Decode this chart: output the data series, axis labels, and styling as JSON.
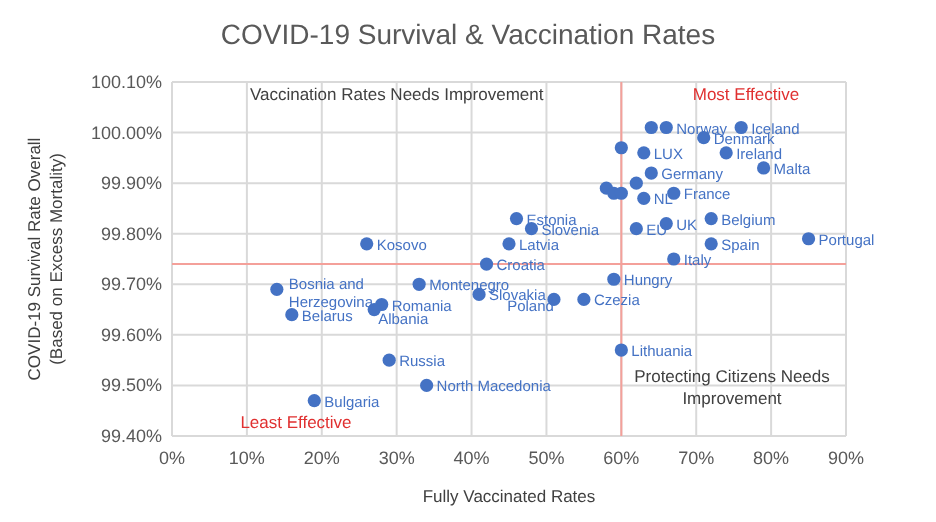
{
  "chart_data": {
    "type": "scatter",
    "title": "COVID-19 Survival & Vaccination Rates",
    "xlabel": "Fully Vaccinated Rates",
    "ylabel": "COVID-19 Survival Rate Overall\n(Based on Excess Mortality)",
    "xlim": [
      0,
      90
    ],
    "xticks": [
      {
        "value": 0,
        "label": "0%"
      },
      {
        "value": 10,
        "label": "10%"
      },
      {
        "value": 20,
        "label": "20%"
      },
      {
        "value": 30,
        "label": "30%"
      },
      {
        "value": 40,
        "label": "40%"
      },
      {
        "value": 50,
        "label": "50%"
      },
      {
        "value": 60,
        "label": "60%"
      },
      {
        "value": 70,
        "label": "70%"
      },
      {
        "value": 80,
        "label": "80%"
      },
      {
        "value": 90,
        "label": "90%"
      }
    ],
    "ylim": [
      99.4,
      100.1
    ],
    "yticks": [
      {
        "value": 99.4,
        "label": "99.40%"
      },
      {
        "value": 99.5,
        "label": "99.50%"
      },
      {
        "value": 99.6,
        "label": "99.60%"
      },
      {
        "value": 99.7,
        "label": "99.70%"
      },
      {
        "value": 99.8,
        "label": "99.80%"
      },
      {
        "value": 99.9,
        "label": "99.90%"
      },
      {
        "value": 100,
        "label": "100.00%"
      },
      {
        "value": 100.1,
        "label": "100.10%"
      }
    ],
    "grid": true,
    "marker": "circle",
    "series": [
      {
        "color": "#4472c4",
        "x": [
          26,
          46,
          48,
          45,
          42,
          64,
          66,
          76,
          71,
          60,
          63,
          74,
          79,
          64,
          62,
          58,
          59,
          60,
          63,
          67,
          72,
          62,
          66,
          72,
          85,
          67,
          14,
          16,
          28,
          27,
          33,
          41,
          51,
          55,
          29,
          34,
          19,
          59,
          60
        ],
        "values": [
          99.78,
          99.83,
          99.81,
          99.78,
          99.74,
          100.01,
          100.01,
          100.01,
          99.99,
          99.97,
          99.96,
          99.96,
          99.93,
          99.92,
          99.9,
          99.89,
          99.88,
          99.88,
          99.87,
          99.88,
          99.83,
          99.81,
          99.82,
          99.78,
          99.79,
          99.75,
          99.69,
          99.64,
          99.66,
          99.65,
          99.7,
          99.68,
          99.67,
          99.67,
          99.55,
          99.5,
          99.47,
          99.71,
          99.57
        ]
      }
    ],
    "ref_lines": [
      {
        "axis": "x",
        "value": 60,
        "color": "#f4a09a"
      },
      {
        "axis": "y",
        "value": 99.74,
        "color": "#f4a09a"
      }
    ],
    "annotations": [
      "Vaccination Rates Needs Improvement",
      "Most Effective",
      "Least Effective",
      "Protecting Citizens Needs\nImprovement",
      {
        "text": "Kosovo",
        "x": 26,
        "y": 99.78
      },
      {
        "text": "Estonia",
        "x": 46,
        "y": 99.83
      },
      {
        "text": "Slovenia",
        "x": 48,
        "y": 99.81
      },
      {
        "text": "Latvia",
        "x": 45,
        "y": 99.78
      },
      {
        "text": "Croatia",
        "x": 42,
        "y": 99.74
      },
      {
        "text": "Norway",
        "x": 66,
        "y": 100.01
      },
      {
        "text": "Iceland",
        "x": 76,
        "y": 100.01
      },
      {
        "text": "Denmark",
        "x": 71,
        "y": 99.99
      },
      {
        "text": "LUX",
        "x": 63,
        "y": 99.96
      },
      {
        "text": "Ireland",
        "x": 74,
        "y": 99.96
      },
      {
        "text": "Malta",
        "x": 79,
        "y": 99.93
      },
      {
        "text": "Germany",
        "x": 64,
        "y": 99.92
      },
      {
        "text": "NL",
        "x": 63,
        "y": 99.87
      },
      {
        "text": "France",
        "x": 67,
        "y": 99.88
      },
      {
        "text": "Belgium",
        "x": 72,
        "y": 99.83
      },
      {
        "text": "EU",
        "x": 62,
        "y": 99.81
      },
      {
        "text": "UK",
        "x": 66,
        "y": 99.82
      },
      {
        "text": "Spain",
        "x": 72,
        "y": 99.78
      },
      {
        "text": "Portugal",
        "x": 85,
        "y": 99.79
      },
      {
        "text": "Italy",
        "x": 67,
        "y": 99.75
      },
      {
        "text": "Bosnia and\nHerzegovina",
        "x": 14,
        "y": 99.69
      },
      {
        "text": "Belarus",
        "x": 16,
        "y": 99.64
      },
      {
        "text": "Romania",
        "x": 28,
        "y": 99.66
      },
      {
        "text": "Albania",
        "x": 27,
        "y": 99.65
      },
      {
        "text": "Montenegro",
        "x": 33,
        "y": 99.7
      },
      {
        "text": "Slovakia",
        "x": 41,
        "y": 99.68
      },
      {
        "text": "Poland",
        "x": 51,
        "y": 99.67
      },
      {
        "text": "Czezia",
        "x": 55,
        "y": 99.67
      },
      {
        "text": "Russia",
        "x": 29,
        "y": 99.55
      },
      {
        "text": "North Macedonia",
        "x": 34,
        "y": 99.5
      },
      {
        "text": "Bulgaria",
        "x": 19,
        "y": 99.47
      },
      {
        "text": "Hungry",
        "x": 59,
        "y": 99.71
      },
      {
        "text": "Lithuania",
        "x": 60,
        "y": 99.57
      }
    ]
  }
}
